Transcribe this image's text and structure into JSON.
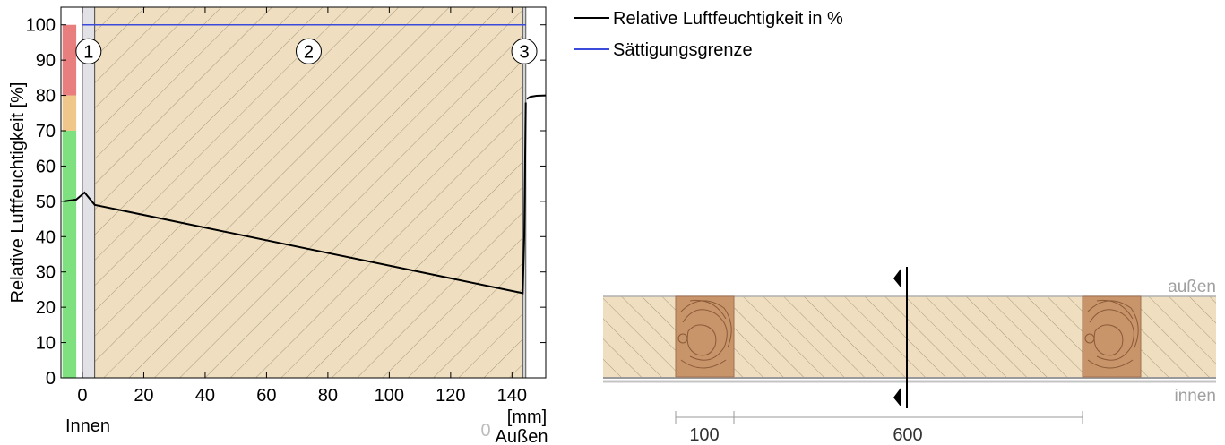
{
  "chart_data": {
    "type": "line",
    "ylabel": "Relative Luftfeuchtigkeit [%]",
    "x_unit_label": "[mm]",
    "x_ticks": [
      0,
      20,
      40,
      60,
      80,
      100,
      120,
      140
    ],
    "y_ticks": [
      0,
      10,
      20,
      30,
      40,
      50,
      60,
      70,
      80,
      90,
      100
    ],
    "xlim": [
      -7,
      151
    ],
    "ylim": [
      0,
      105
    ],
    "side_labels": {
      "inside": "Innen",
      "outside": "Außen",
      "outside_tick": "0"
    },
    "layers": [
      {
        "label": "1",
        "x_start": 0,
        "x_end": 4
      },
      {
        "label": "2",
        "x_start": 4,
        "x_end": 143.5
      },
      {
        "label": "3",
        "x_start": 143.5,
        "x_end": 144.5
      }
    ],
    "series": [
      {
        "name": "Relative Luftfeuchtigkeit in %",
        "color": "#000000",
        "points": [
          [
            -6,
            50
          ],
          [
            -2,
            50.5
          ],
          [
            0,
            52
          ],
          [
            0.7,
            52.5
          ],
          [
            4,
            49
          ],
          [
            143.5,
            24
          ],
          [
            144,
            40
          ],
          [
            144.5,
            78
          ]
        ]
      },
      {
        "name": "Sättigungsgrenze",
        "color": "#3a4bdc",
        "points": [
          [
            0,
            100
          ],
          [
            144.5,
            100
          ]
        ]
      }
    ],
    "outside_segment": [
      [
        144.8,
        79
      ],
      [
        146,
        79.6
      ],
      [
        148,
        79.9
      ],
      [
        151,
        80
      ]
    ],
    "comfort_bar": [
      {
        "from": 0,
        "to": 70,
        "color": "#7ee07e"
      },
      {
        "from": 70,
        "to": 80,
        "color": "#f0c78a"
      },
      {
        "from": 80,
        "to": 100,
        "color": "#e87e7e"
      }
    ]
  },
  "cross_section": {
    "outside_label": "außen",
    "inside_label": "innen",
    "dimensions": [
      "100",
      "600"
    ]
  }
}
